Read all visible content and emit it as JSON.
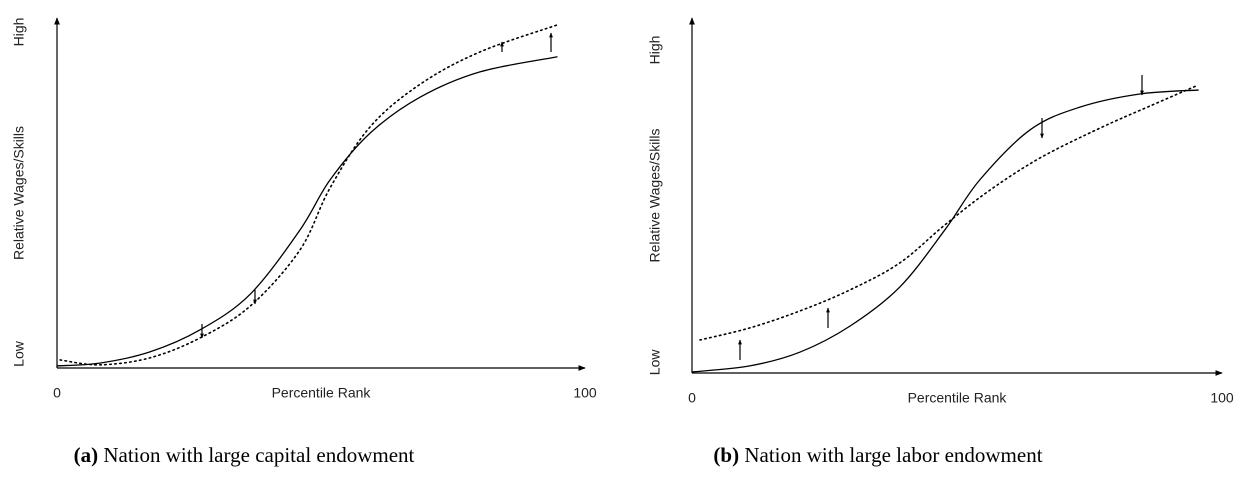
{
  "chart_data": [
    {
      "type": "line",
      "caption_label": "(a)",
      "caption": "Nation with large capital endowment",
      "xlabel": "Percentile Rank",
      "ylabel": "Relative Wages/Skills",
      "xlim": [
        0,
        100
      ],
      "xticks": [
        0,
        100
      ],
      "ylim": [
        0,
        1
      ],
      "yticks": [
        {
          "value": 0.04,
          "label": "Low"
        },
        {
          "value": 0.96,
          "label": "High"
        }
      ],
      "series": [
        {
          "color": "#000000",
          "style": "solid",
          "x": [
            0,
            8.1,
            17.6,
            27.1,
            36.6,
            46.0,
            51.7,
            59.3,
            68.8,
            80.1,
            94.7
          ],
          "values": [
            0.006,
            0.014,
            0.046,
            0.109,
            0.211,
            0.394,
            0.537,
            0.671,
            0.774,
            0.846,
            0.889
          ]
        },
        {
          "color": "#000000",
          "style": "dotted",
          "x": [
            0.6,
            8.1,
            17.6,
            27.1,
            36.6,
            46.0,
            51.7,
            59.3,
            68.8,
            80.1,
            94.7
          ],
          "values": [
            0.023,
            0.009,
            0.029,
            0.086,
            0.177,
            0.337,
            0.514,
            0.689,
            0.811,
            0.903,
            0.98
          ]
        }
      ]
    },
    {
      "type": "line",
      "caption_label": "(b)",
      "caption": "Nation with large labor endowment",
      "xlabel": "Percentile Rank",
      "ylabel": "Relative Wages/Skills",
      "xlim": [
        0,
        100
      ],
      "xticks": [
        0,
        100
      ],
      "ylim": [
        0,
        1
      ],
      "yticks": [
        {
          "value": 0.03,
          "label": "Low"
        },
        {
          "value": 0.91,
          "label": "High"
        }
      ],
      "series": [
        {
          "color": "#000000",
          "style": "solid",
          "x": [
            0,
            10.9,
            20.4,
            29.8,
            39.2,
            47.7,
            54.3,
            63.8,
            73.2,
            84.5,
            95.5
          ],
          "values": [
            0.003,
            0.02,
            0.059,
            0.132,
            0.242,
            0.403,
            0.544,
            0.685,
            0.749,
            0.786,
            0.797
          ]
        },
        {
          "color": "#000000",
          "style": "dotted",
          "x": [
            1.5,
            10.9,
            20.4,
            29.8,
            39.2,
            47.7,
            56.2,
            65.7,
            77.0,
            86.4,
            95.5
          ],
          "values": [
            0.093,
            0.127,
            0.175,
            0.234,
            0.31,
            0.417,
            0.515,
            0.606,
            0.69,
            0.752,
            0.811
          ]
        }
      ]
    }
  ]
}
